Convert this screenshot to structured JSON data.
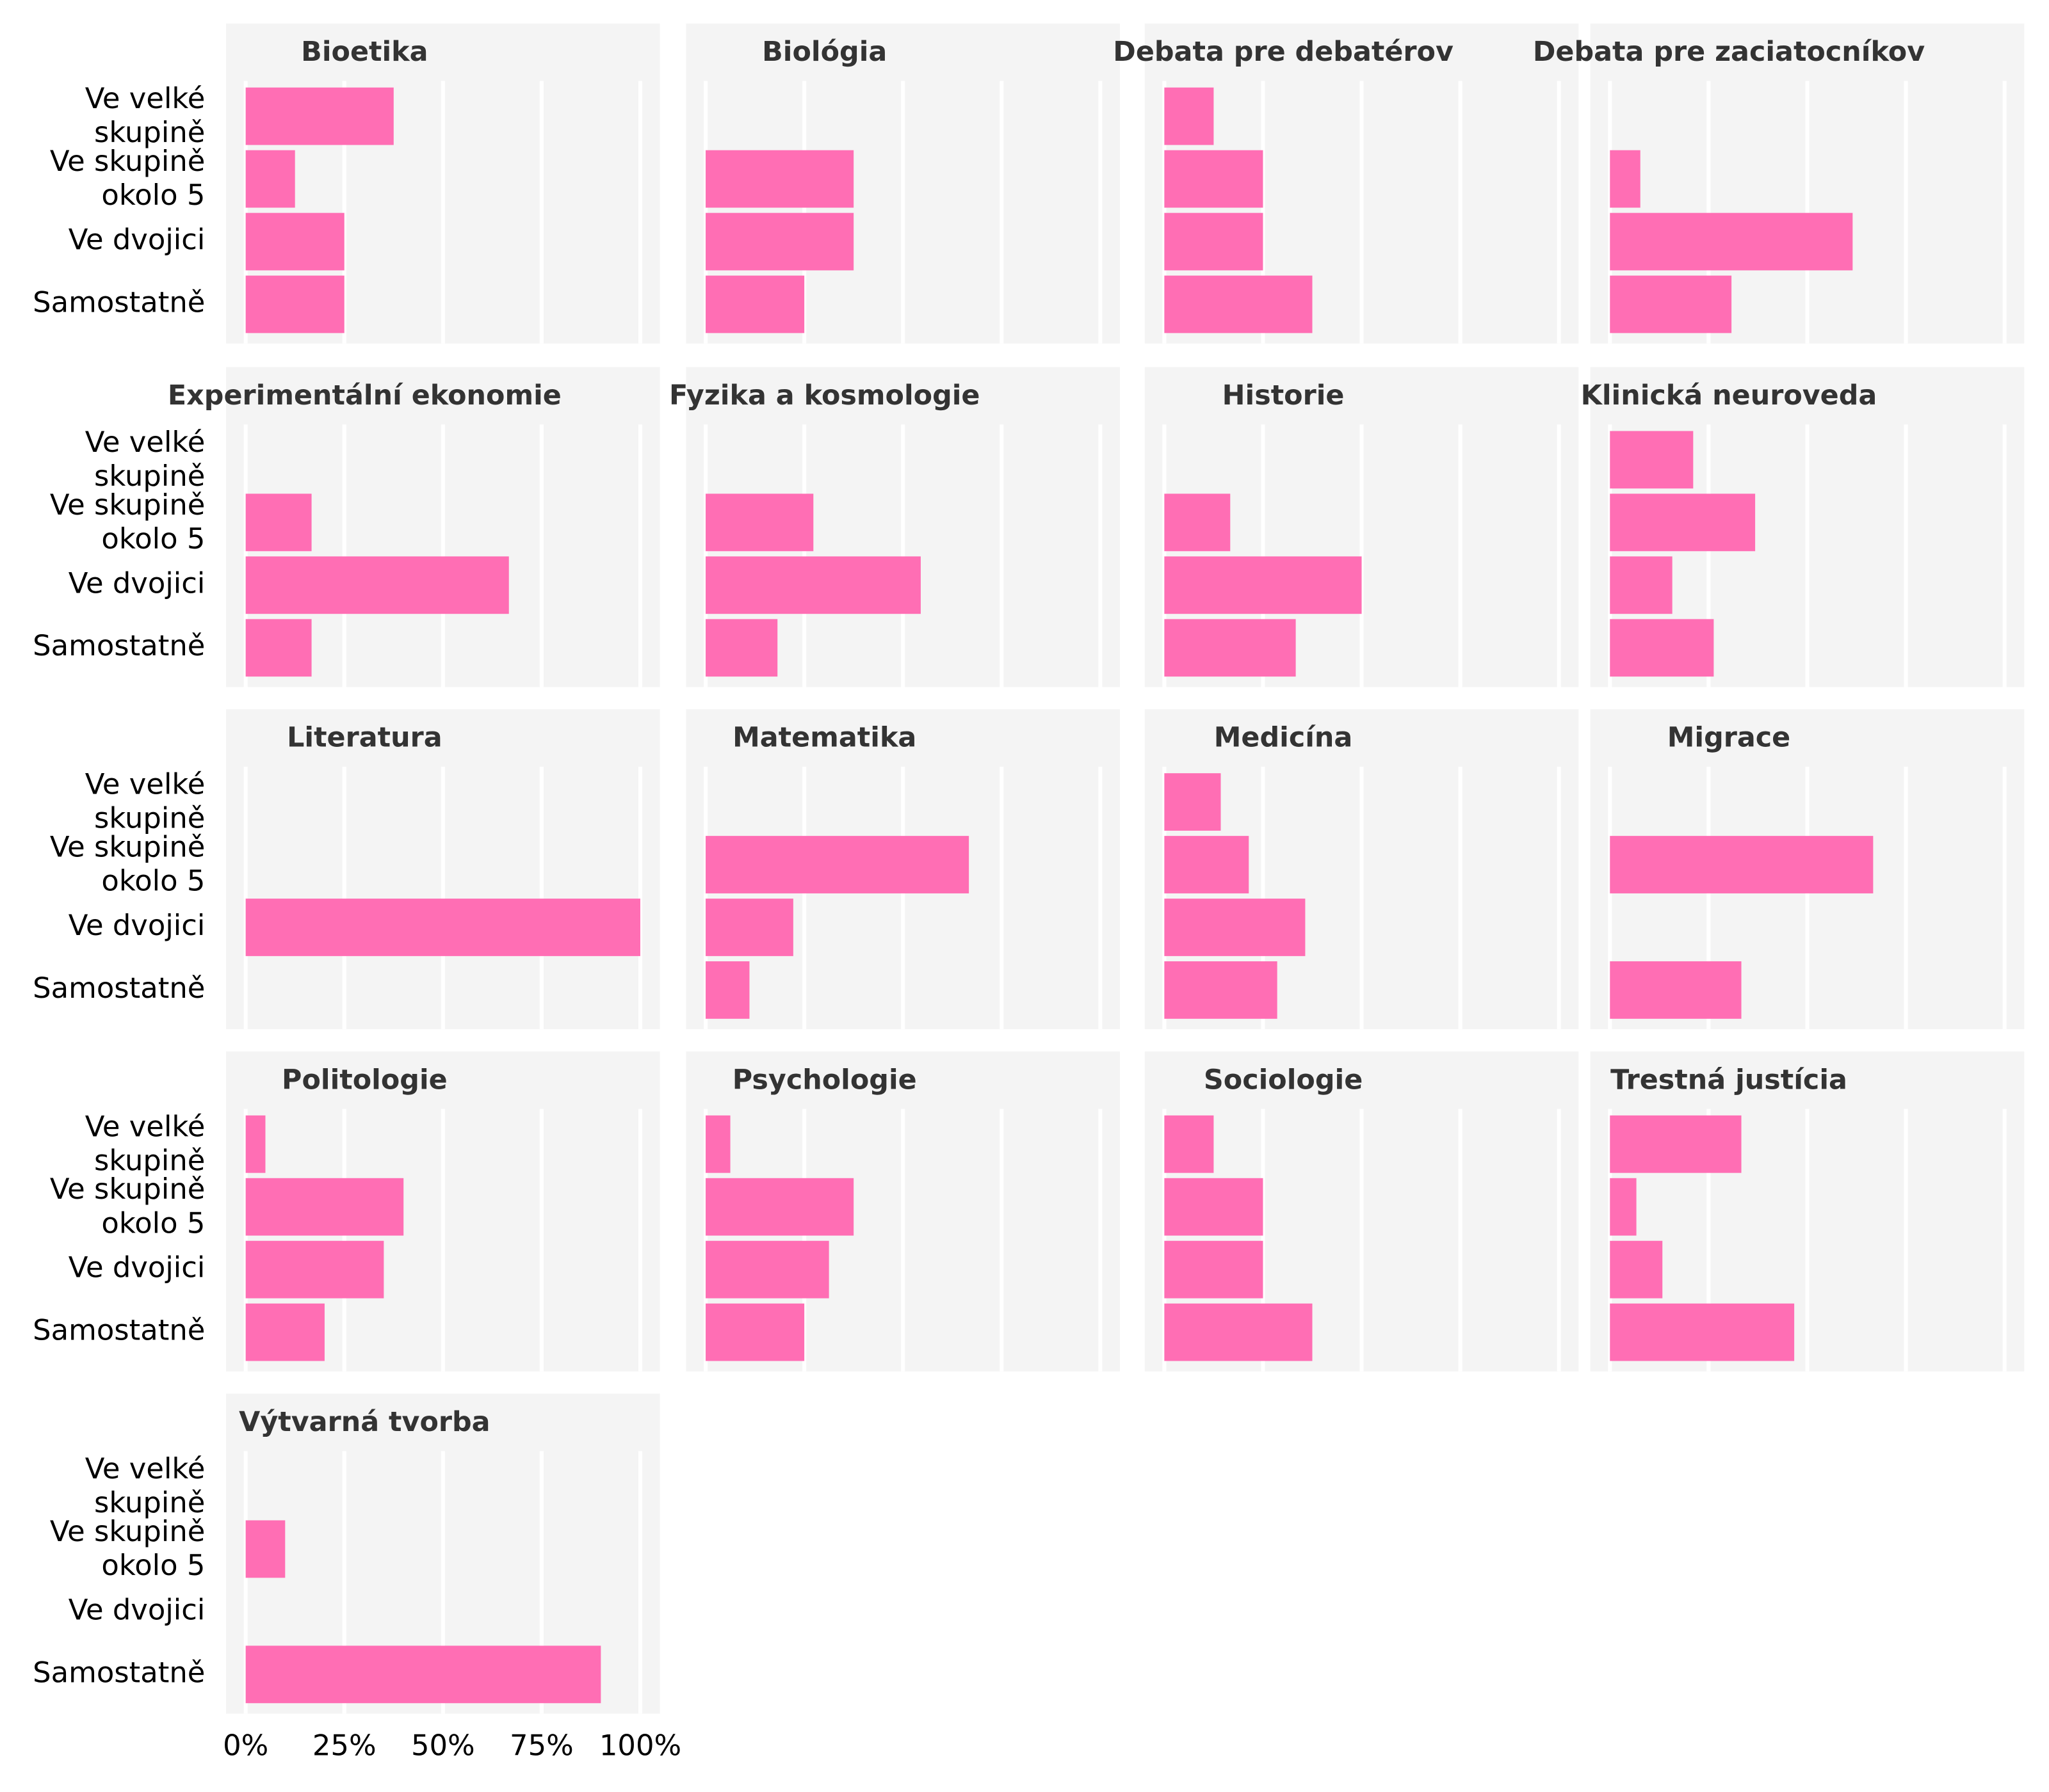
{
  "chart_data": {
    "type": "bar",
    "categories": [
      "Ve velké skupině",
      "Ve skupině okolo 5",
      "Ve dvojici",
      "Samostatně"
    ],
    "color": "#ff6eb4",
    "xlim": [
      0,
      100
    ],
    "xticks": [
      {
        "value": 0,
        "label": "0%"
      },
      {
        "value": 25,
        "label": "25%"
      },
      {
        "value": 50,
        "label": "50%"
      },
      {
        "value": 75,
        "label": "75%"
      },
      {
        "value": 100,
        "label": "100%"
      }
    ],
    "grid": true,
    "panels": [
      {
        "title": "Bioetika",
        "values": [
          37.5,
          12.5,
          25,
          25
        ]
      },
      {
        "title": "Biológia",
        "values": [
          0,
          37.5,
          37.5,
          25
        ]
      },
      {
        "title": "Debata pre debatérov",
        "values": [
          12.5,
          25,
          25,
          37.5
        ]
      },
      {
        "title": "Debata pre zaciatocníkov",
        "values": [
          0,
          7.7,
          61.5,
          30.8
        ]
      },
      {
        "title": "Experimentální ekonomie",
        "values": [
          0,
          16.7,
          66.7,
          16.7
        ]
      },
      {
        "title": "Fyzika a kosmologie",
        "values": [
          0,
          27.3,
          54.5,
          18.2
        ]
      },
      {
        "title": "Historie",
        "values": [
          0,
          16.7,
          50,
          33.3
        ]
      },
      {
        "title": "Klinická neuroveda",
        "values": [
          21.1,
          36.8,
          15.8,
          26.3
        ]
      },
      {
        "title": "Literatura",
        "values": [
          0,
          0,
          100,
          0
        ]
      },
      {
        "title": "Matematika",
        "values": [
          0,
          66.7,
          22.2,
          11.1
        ]
      },
      {
        "title": "Medicína",
        "values": [
          14.3,
          21.4,
          35.7,
          28.6
        ]
      },
      {
        "title": "Migrace",
        "values": [
          0,
          66.7,
          0,
          33.3
        ]
      },
      {
        "title": "Politologie",
        "values": [
          5,
          40,
          35,
          20
        ]
      },
      {
        "title": "Psychologie",
        "values": [
          6.25,
          37.5,
          31.25,
          25
        ]
      },
      {
        "title": "Sociologie",
        "values": [
          12.5,
          25,
          25,
          37.5
        ]
      },
      {
        "title": "Trestná justícia",
        "values": [
          33.3,
          6.7,
          13.3,
          46.7
        ]
      },
      {
        "title": "Výtvarná tvorba",
        "values": [
          0,
          10,
          0,
          90
        ]
      }
    ]
  }
}
